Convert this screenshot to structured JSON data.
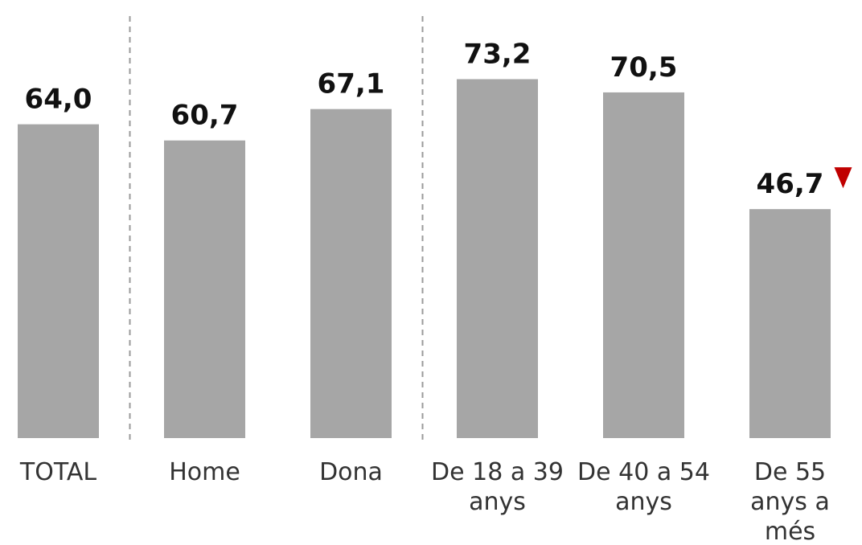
{
  "chart_data": {
    "type": "bar",
    "title": "",
    "xlabel": "",
    "ylabel": "",
    "categories": [
      [
        "TOTAL"
      ],
      [
        "Home"
      ],
      [
        "Dona"
      ],
      [
        "De 18 a 39",
        "anys"
      ],
      [
        "De 40 a 54",
        "anys"
      ],
      [
        "De 55",
        "anys a",
        "més"
      ]
    ],
    "values": [
      64.0,
      60.7,
      67.1,
      73.2,
      70.5,
      46.7
    ],
    "value_labels": [
      "64,0",
      "60,7",
      "67,1",
      "73,2",
      "70,5",
      "46,7"
    ],
    "flags": [
      "",
      "",
      "",
      "",
      "",
      "down"
    ],
    "ylim": [
      0,
      100
    ],
    "grid": false,
    "bar_color": "#a6a6a6",
    "flag_color": "#c00000",
    "separators_after_index": [
      0,
      2
    ],
    "separator_color": "#9a9a9a"
  }
}
